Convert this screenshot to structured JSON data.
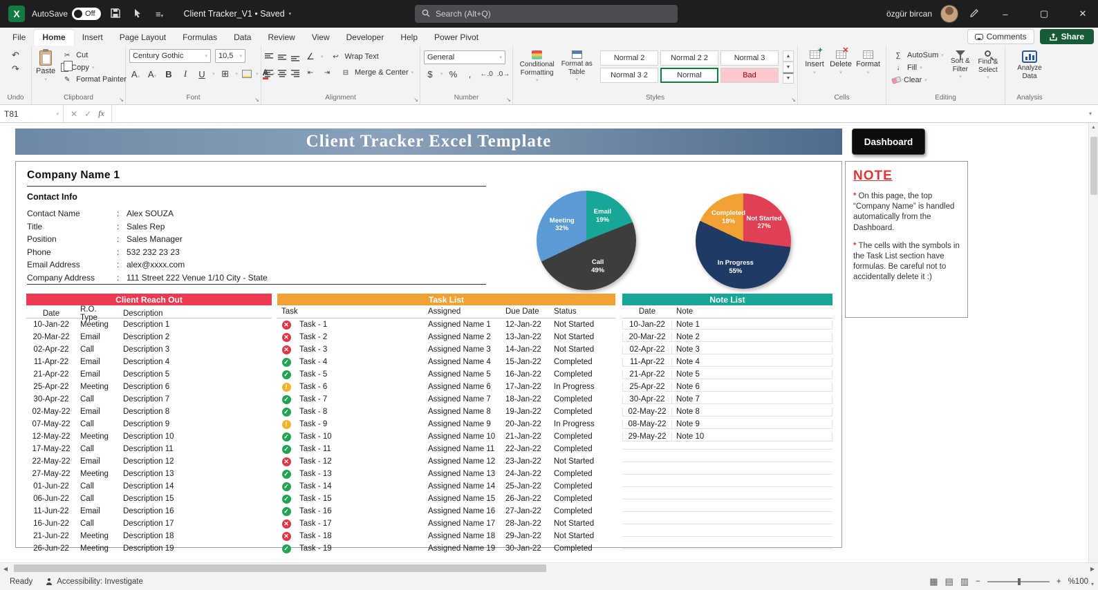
{
  "titlebar": {
    "autosave_label": "AutoSave",
    "autosave_state": "Off",
    "doc_title": "Client Tracker_V1 • Saved",
    "search_placeholder": "Search (Alt+Q)",
    "user_name": "özgür bircan"
  },
  "tabs": {
    "items": [
      {
        "label": "File",
        "active": false
      },
      {
        "label": "Home",
        "active": true
      },
      {
        "label": "Insert",
        "active": false
      },
      {
        "label": "Page Layout",
        "active": false
      },
      {
        "label": "Formulas",
        "active": false
      },
      {
        "label": "Data",
        "active": false
      },
      {
        "label": "Review",
        "active": false
      },
      {
        "label": "View",
        "active": false
      },
      {
        "label": "Developer",
        "active": false
      },
      {
        "label": "Help",
        "active": false
      },
      {
        "label": "Power Pivot",
        "active": false
      }
    ],
    "comments_label": "Comments",
    "share_label": "Share"
  },
  "ribbon": {
    "undo": {
      "group_label": "Undo"
    },
    "clipboard": {
      "paste": "Paste",
      "cut": "Cut",
      "copy": "Copy",
      "format_painter": "Format Painter",
      "group_label": "Clipboard"
    },
    "font": {
      "family": "Century Gothic",
      "size": "10,5",
      "group_label": "Font"
    },
    "alignment": {
      "wrap": "Wrap Text",
      "merge": "Merge & Center",
      "group_label": "Alignment"
    },
    "number": {
      "format": "General",
      "group_label": "Number"
    },
    "styles": {
      "conditional_formatting": "Conditional Formatting",
      "format_as_table": "Format as Table",
      "gallery": [
        {
          "label": "Normal 2",
          "kind": "normal"
        },
        {
          "label": "Normal 2 2",
          "kind": "normal"
        },
        {
          "label": "Normal 3",
          "kind": "normal"
        },
        {
          "label": "Normal 3 2",
          "kind": "normal"
        },
        {
          "label": "Normal",
          "kind": "selected"
        },
        {
          "label": "Bad",
          "kind": "bad"
        }
      ],
      "group_label": "Styles"
    },
    "cells": {
      "insert": "Insert",
      "delete": "Delete",
      "format": "Format",
      "group_label": "Cells"
    },
    "editing": {
      "autosum": "AutoSum",
      "fill": "Fill",
      "clear": "Clear",
      "sort_filter": "Sort & Filter",
      "find_select": "Find & Select",
      "group_label": "Editing"
    },
    "analysis": {
      "analyze": "Analyze Data",
      "group_label": "Analysis"
    }
  },
  "formula_bar": {
    "cell_ref": "T81",
    "insert_function_label": "fx"
  },
  "sheet": {
    "banner_title": "Client Tracker Excel Template",
    "dashboard_button": "Dashboard",
    "company": {
      "name": "Company Name 1",
      "section_heading": "Contact Info",
      "fields": [
        {
          "label": "Contact Name",
          "sep": ":",
          "value": "Alex SOUZA"
        },
        {
          "label": "Title",
          "sep": ":",
          "value": "Sales Rep"
        },
        {
          "label": "Position",
          "sep": ":",
          "value": "Sales Manager"
        },
        {
          "label": "Phone",
          "sep": ":",
          "value": "532 232 23 23"
        },
        {
          "label": "Email Address",
          "sep": ":",
          "value": "alex@xxxx.com"
        },
        {
          "label": "Company Address",
          "sep": ":",
          "value": "111 Street 222 Venue 1/10 City - State"
        }
      ]
    },
    "note_panel": {
      "title": "NOTE",
      "items": [
        {
          "bullet": "*",
          "text": "On this page, the top “Company Name” is handled automatically from the Dashboard."
        },
        {
          "bullet": "*",
          "text": "The cells with the symbols in the Task List section have formulas. Be careful not to accidentally delete it :)"
        }
      ]
    },
    "reach_out": {
      "title": "Client Reach Out",
      "columns": [
        "Date",
        "R.O. Type",
        "Description"
      ],
      "rows": [
        {
          "date": "10-Jan-22",
          "type": "Meeting",
          "desc": "Description 1"
        },
        {
          "date": "20-Mar-22",
          "type": "Email",
          "desc": "Description 2"
        },
        {
          "date": "02-Apr-22",
          "type": "Call",
          "desc": "Description 3"
        },
        {
          "date": "11-Apr-22",
          "type": "Email",
          "desc": "Description 4"
        },
        {
          "date": "21-Apr-22",
          "type": "Email",
          "desc": "Description 5"
        },
        {
          "date": "25-Apr-22",
          "type": "Meeting",
          "desc": "Description 6"
        },
        {
          "date": "30-Apr-22",
          "type": "Call",
          "desc": "Description 7"
        },
        {
          "date": "02-May-22",
          "type": "Email",
          "desc": "Description 8"
        },
        {
          "date": "07-May-22",
          "type": "Call",
          "desc": "Description 9"
        },
        {
          "date": "12-May-22",
          "type": "Meeting",
          "desc": "Description 10"
        },
        {
          "date": "17-May-22",
          "type": "Call",
          "desc": "Description 11"
        },
        {
          "date": "22-May-22",
          "type": "Email",
          "desc": "Description 12"
        },
        {
          "date": "27-May-22",
          "type": "Meeting",
          "desc": "Description 13"
        },
        {
          "date": "01-Jun-22",
          "type": "Call",
          "desc": "Description 14"
        },
        {
          "date": "06-Jun-22",
          "type": "Call",
          "desc": "Description 15"
        },
        {
          "date": "11-Jun-22",
          "type": "Email",
          "desc": "Description 16"
        },
        {
          "date": "16-Jun-22",
          "type": "Call",
          "desc": "Description 17"
        },
        {
          "date": "21-Jun-22",
          "type": "Meeting",
          "desc": "Description 18"
        },
        {
          "date": "26-Jun-22",
          "type": "Meeting",
          "desc": "Description 19"
        }
      ]
    },
    "task_list": {
      "title": "Task List",
      "columns": [
        "Task",
        "Assigned",
        "Due Date",
        "Status"
      ],
      "rows": [
        {
          "icon": "x",
          "task": "Task - 1",
          "assigned": "Assigned Name 1",
          "due": "12-Jan-22",
          "status": "Not Started"
        },
        {
          "icon": "x",
          "task": "Task - 2",
          "assigned": "Assigned Name 2",
          "due": "13-Jan-22",
          "status": "Not Started"
        },
        {
          "icon": "x",
          "task": "Task - 3",
          "assigned": "Assigned Name 3",
          "due": "14-Jan-22",
          "status": "Not Started"
        },
        {
          "icon": "check",
          "task": "Task - 4",
          "assigned": "Assigned Name 4",
          "due": "15-Jan-22",
          "status": "Completed"
        },
        {
          "icon": "check",
          "task": "Task - 5",
          "assigned": "Assigned Name 5",
          "due": "16-Jan-22",
          "status": "Completed"
        },
        {
          "icon": "bang",
          "task": "Task - 6",
          "assigned": "Assigned Name 6",
          "due": "17-Jan-22",
          "status": "In Progress"
        },
        {
          "icon": "check",
          "task": "Task - 7",
          "assigned": "Assigned Name 7",
          "due": "18-Jan-22",
          "status": "Completed"
        },
        {
          "icon": "check",
          "task": "Task - 8",
          "assigned": "Assigned Name 8",
          "due": "19-Jan-22",
          "status": "Completed"
        },
        {
          "icon": "bang",
          "task": "Task - 9",
          "assigned": "Assigned Name 9",
          "due": "20-Jan-22",
          "status": "In Progress"
        },
        {
          "icon": "check",
          "task": "Task - 10",
          "assigned": "Assigned Name 10",
          "due": "21-Jan-22",
          "status": "Completed"
        },
        {
          "icon": "check",
          "task": "Task - 11",
          "assigned": "Assigned Name 11",
          "due": "22-Jan-22",
          "status": "Completed"
        },
        {
          "icon": "x",
          "task": "Task - 12",
          "assigned": "Assigned Name 12",
          "due": "23-Jan-22",
          "status": "Not Started"
        },
        {
          "icon": "check",
          "task": "Task - 13",
          "assigned": "Assigned Name 13",
          "due": "24-Jan-22",
          "status": "Completed"
        },
        {
          "icon": "check",
          "task": "Task - 14",
          "assigned": "Assigned Name 14",
          "due": "25-Jan-22",
          "status": "Completed"
        },
        {
          "icon": "check",
          "task": "Task - 15",
          "assigned": "Assigned Name 15",
          "due": "26-Jan-22",
          "status": "Completed"
        },
        {
          "icon": "check",
          "task": "Task - 16",
          "assigned": "Assigned Name 16",
          "due": "27-Jan-22",
          "status": "Completed"
        },
        {
          "icon": "x",
          "task": "Task - 17",
          "assigned": "Assigned Name 17",
          "due": "28-Jan-22",
          "status": "Not Started"
        },
        {
          "icon": "x",
          "task": "Task - 18",
          "assigned": "Assigned Name 18",
          "due": "29-Jan-22",
          "status": "Not Started"
        },
        {
          "icon": "check",
          "task": "Task - 19",
          "assigned": "Assigned Name 19",
          "due": "30-Jan-22",
          "status": "Completed"
        }
      ]
    },
    "note_list": {
      "title": "Note  List",
      "columns": [
        "Date",
        "Note"
      ],
      "rows": [
        {
          "date": "10-Jan-22",
          "note": "Note 1"
        },
        {
          "date": "20-Mar-22",
          "note": "Note 2"
        },
        {
          "date": "02-Apr-22",
          "note": "Note 3"
        },
        {
          "date": "11-Apr-22",
          "note": "Note 4"
        },
        {
          "date": "21-Apr-22",
          "note": "Note 5"
        },
        {
          "date": "25-Apr-22",
          "note": "Note 6"
        },
        {
          "date": "30-Apr-22",
          "note": "Note 7"
        },
        {
          "date": "02-May-22",
          "note": "Note 8"
        },
        {
          "date": "08-May-22",
          "note": "Note 9"
        },
        {
          "date": "29-May-22",
          "note": "Note 10"
        },
        {
          "date": "",
          "note": ""
        },
        {
          "date": "",
          "note": ""
        },
        {
          "date": "",
          "note": ""
        },
        {
          "date": "",
          "note": ""
        },
        {
          "date": "",
          "note": ""
        },
        {
          "date": "",
          "note": ""
        },
        {
          "date": "",
          "note": ""
        },
        {
          "date": "",
          "note": ""
        },
        {
          "date": "",
          "note": ""
        }
      ]
    }
  },
  "status_bar": {
    "ready_label": "Ready",
    "accessibility_label": "Accessibility: Investigate",
    "zoom_label": "%100"
  },
  "colors": {
    "excel_green": "#185c37",
    "titlebar_bg": "#1e1e1e",
    "header_red": "#ee3a50",
    "header_orange": "#f2a233",
    "header_teal": "#17a797",
    "note_red": "#e03535",
    "icon_red": "#e03545",
    "icon_green": "#23a455",
    "icon_yellow": "#f0b429",
    "bad_bg": "#ffc7ce",
    "bad_text": "#9c0006",
    "banner_a": "#6d88a6",
    "banner_b": "#8ba1b9",
    "banner_c": "#4f6a8c"
  },
  "chart_data": [
    {
      "type": "pie",
      "name": "reach-out-type-pie",
      "slices": [
        {
          "label": "Email",
          "value": 19,
          "color": "#17a797"
        },
        {
          "label": "Call",
          "value": 49,
          "color": "#3d3d3d"
        },
        {
          "label": "Meeting",
          "value": 32,
          "color": "#5b9bd5"
        }
      ]
    },
    {
      "type": "pie",
      "name": "task-status-pie",
      "slices": [
        {
          "label": "Not Started",
          "value": 27,
          "color": "#e04055"
        },
        {
          "label": "In Progress",
          "value": 55,
          "color": "#203a64"
        },
        {
          "label": "Completed",
          "value": 18,
          "color": "#f2a233"
        }
      ]
    }
  ]
}
